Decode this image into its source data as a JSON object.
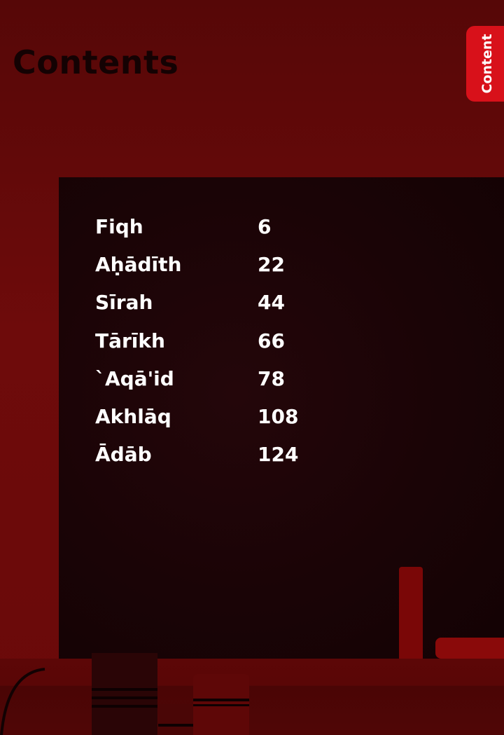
{
  "title": "Contents",
  "side_tab": {
    "label": "Content",
    "color": "#d8111a"
  },
  "toc": [
    {
      "title": "Fiqh",
      "page": "6"
    },
    {
      "title": "Aḥādīth",
      "page": "22"
    },
    {
      "title": "Sīrah",
      "page": "44"
    },
    {
      "title": "Tārīkh",
      "page": "66"
    },
    {
      "title": "`Aqā'id",
      "page": "78"
    },
    {
      "title": "Akhlāq",
      "page": "108"
    },
    {
      "title": "Ādāb",
      "page": "124"
    }
  ]
}
